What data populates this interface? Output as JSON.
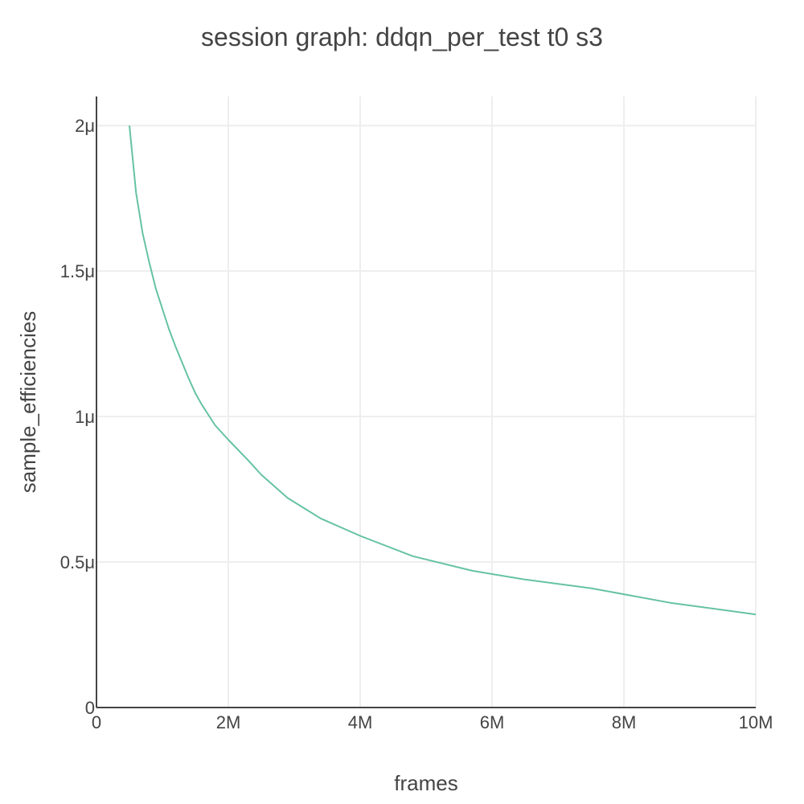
{
  "chart_data": {
    "type": "line",
    "title": "session graph: ddqn_per_test t0 s3",
    "xlabel": "frames",
    "ylabel": "sample_efficiencies",
    "xlim": [
      0,
      10000000
    ],
    "ylim": [
      0,
      2.1e-06
    ],
    "x_ticks": [
      {
        "value": 0,
        "label": "0"
      },
      {
        "value": 2000000,
        "label": "2M"
      },
      {
        "value": 4000000,
        "label": "4M"
      },
      {
        "value": 6000000,
        "label": "6M"
      },
      {
        "value": 8000000,
        "label": "8M"
      },
      {
        "value": 10000000,
        "label": "10M"
      }
    ],
    "y_ticks": [
      {
        "value": 0,
        "label": "0"
      },
      {
        "value": 5e-07,
        "label": "0.5μ"
      },
      {
        "value": 1e-06,
        "label": "1μ"
      },
      {
        "value": 1.5e-06,
        "label": "1.5μ"
      },
      {
        "value": 2e-06,
        "label": "2μ"
      }
    ],
    "grid": true,
    "legend": "none",
    "series": [
      {
        "color": "#66c2a5",
        "x": [
          500000,
          600000,
          700000,
          800000,
          900000,
          1000000,
          1100000,
          1200000,
          1400000,
          1500000,
          1600000,
          1800000,
          2000000,
          2300000,
          2500000,
          2900000,
          3400000,
          4000000,
          4800000,
          5700000,
          6500000,
          7500000,
          8700000,
          10000000
        ],
        "y": [
          2e-06,
          1.77e-06,
          1.63e-06,
          1.53e-06,
          1.44e-06,
          1.37e-06,
          1.3e-06,
          1.24e-06,
          1.13e-06,
          1.08e-06,
          1.04e-06,
          9.7e-07,
          9.2e-07,
          8.5e-07,
          8e-07,
          7.2e-07,
          6.5e-07,
          5.9e-07,
          5.2e-07,
          4.7e-07,
          4.4e-07,
          4.1e-07,
          3.6e-07,
          3.2e-07
        ]
      }
    ]
  }
}
